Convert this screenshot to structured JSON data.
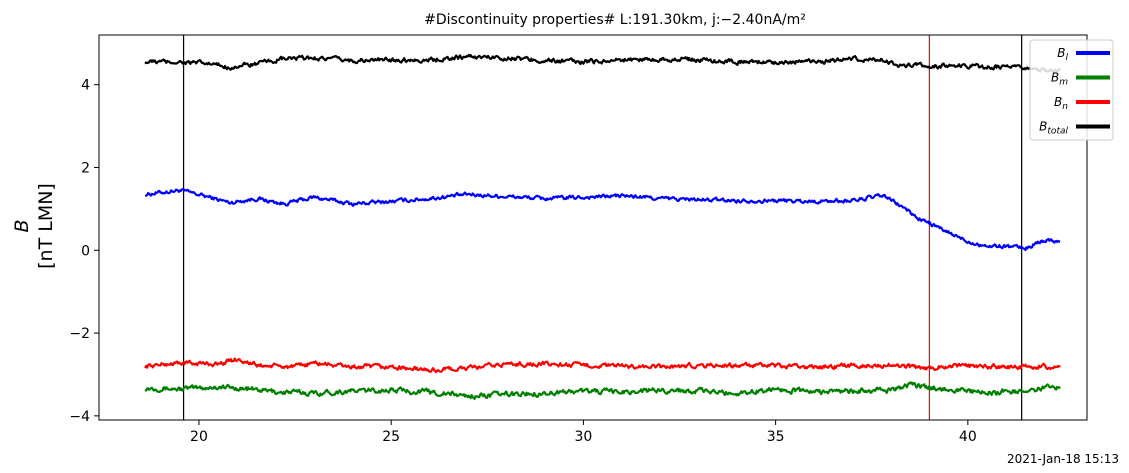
{
  "chart_data": {
    "type": "line",
    "title": "#Discontinuity properties# L:191.30km, j:−2.40nA/m²",
    "ylabel_line1": "B",
    "ylabel_line2": "[nT LMN]",
    "xlabel": "",
    "xlim": [
      17.4,
      43.1
    ],
    "ylim": [
      -4.1,
      5.2
    ],
    "xticks": [
      20,
      25,
      30,
      35,
      40
    ],
    "yticks": [
      4,
      2,
      0,
      -2,
      -4
    ],
    "ytick_labels": [
      "4",
      "2",
      "0",
      "−2",
      "−4"
    ],
    "grid": false,
    "legend_position": "top-right",
    "x_range": [
      18.6,
      42.4
    ],
    "vlines": [
      {
        "x": 19.6,
        "color": "#000000"
      },
      {
        "x": 39.0,
        "color": "#ff0000"
      },
      {
        "x": 41.4,
        "color": "#000000"
      }
    ],
    "series": [
      {
        "name": "B_l",
        "color": "#0000ff",
        "noise": 0.035,
        "points": [
          [
            18.6,
            1.35
          ],
          [
            19.5,
            1.45
          ],
          [
            20.2,
            1.3
          ],
          [
            20.8,
            1.15
          ],
          [
            21.5,
            1.25
          ],
          [
            22.2,
            1.12
          ],
          [
            23.0,
            1.28
          ],
          [
            24.0,
            1.12
          ],
          [
            25.0,
            1.18
          ],
          [
            26.0,
            1.25
          ],
          [
            27.0,
            1.35
          ],
          [
            28.0,
            1.3
          ],
          [
            29.0,
            1.25
          ],
          [
            30.0,
            1.28
          ],
          [
            31.0,
            1.32
          ],
          [
            32.0,
            1.25
          ],
          [
            33.0,
            1.22
          ],
          [
            34.0,
            1.2
          ],
          [
            35.0,
            1.2
          ],
          [
            36.0,
            1.18
          ],
          [
            37.0,
            1.2
          ],
          [
            37.8,
            1.32
          ],
          [
            38.3,
            1.05
          ],
          [
            38.7,
            0.78
          ],
          [
            39.0,
            0.65
          ],
          [
            39.5,
            0.42
          ],
          [
            40.0,
            0.22
          ],
          [
            40.5,
            0.1
          ],
          [
            41.0,
            0.1
          ],
          [
            41.5,
            0.05
          ],
          [
            42.0,
            0.25
          ],
          [
            42.4,
            0.22
          ]
        ]
      },
      {
        "name": "B_m",
        "color": "#008000",
        "noise": 0.045,
        "points": [
          [
            18.6,
            -3.32
          ],
          [
            19.5,
            -3.35
          ],
          [
            20.5,
            -3.3
          ],
          [
            21.3,
            -3.35
          ],
          [
            22.0,
            -3.42
          ],
          [
            23.0,
            -3.45
          ],
          [
            24.0,
            -3.4
          ],
          [
            25.0,
            -3.38
          ],
          [
            26.0,
            -3.42
          ],
          [
            27.0,
            -3.52
          ],
          [
            28.0,
            -3.48
          ],
          [
            29.0,
            -3.45
          ],
          [
            30.0,
            -3.4
          ],
          [
            31.0,
            -3.42
          ],
          [
            32.0,
            -3.38
          ],
          [
            33.0,
            -3.4
          ],
          [
            34.0,
            -3.45
          ],
          [
            35.0,
            -3.35
          ],
          [
            36.0,
            -3.42
          ],
          [
            37.0,
            -3.4
          ],
          [
            38.0,
            -3.38
          ],
          [
            38.5,
            -3.25
          ],
          [
            39.0,
            -3.32
          ],
          [
            39.5,
            -3.35
          ],
          [
            40.0,
            -3.4
          ],
          [
            40.5,
            -3.45
          ],
          [
            41.0,
            -3.4
          ],
          [
            41.5,
            -3.42
          ],
          [
            42.0,
            -3.32
          ],
          [
            42.4,
            -3.3
          ]
        ]
      },
      {
        "name": "B_n",
        "color": "#ff0000",
        "noise": 0.04,
        "points": [
          [
            18.6,
            -2.8
          ],
          [
            19.5,
            -2.72
          ],
          [
            20.5,
            -2.75
          ],
          [
            21.0,
            -2.62
          ],
          [
            21.5,
            -2.78
          ],
          [
            22.5,
            -2.82
          ],
          [
            23.0,
            -2.72
          ],
          [
            24.0,
            -2.82
          ],
          [
            25.0,
            -2.82
          ],
          [
            26.0,
            -2.9
          ],
          [
            27.0,
            -2.85
          ],
          [
            28.0,
            -2.75
          ],
          [
            29.0,
            -2.75
          ],
          [
            30.0,
            -2.78
          ],
          [
            31.0,
            -2.8
          ],
          [
            32.0,
            -2.82
          ],
          [
            33.0,
            -2.78
          ],
          [
            34.0,
            -2.78
          ],
          [
            35.0,
            -2.8
          ],
          [
            36.0,
            -2.82
          ],
          [
            37.0,
            -2.78
          ],
          [
            38.0,
            -2.78
          ],
          [
            39.0,
            -2.85
          ],
          [
            39.5,
            -2.78
          ],
          [
            40.0,
            -2.8
          ],
          [
            41.0,
            -2.82
          ],
          [
            42.0,
            -2.8
          ],
          [
            42.4,
            -2.85
          ]
        ]
      },
      {
        "name": "B_total",
        "color": "#000000",
        "noise": 0.04,
        "points": [
          [
            18.6,
            4.55
          ],
          [
            19.5,
            4.55
          ],
          [
            20.3,
            4.5
          ],
          [
            20.8,
            4.42
          ],
          [
            21.5,
            4.5
          ],
          [
            22.2,
            4.62
          ],
          [
            23.0,
            4.65
          ],
          [
            24.0,
            4.58
          ],
          [
            25.0,
            4.6
          ],
          [
            26.0,
            4.6
          ],
          [
            27.0,
            4.68
          ],
          [
            28.0,
            4.65
          ],
          [
            29.0,
            4.58
          ],
          [
            30.0,
            4.55
          ],
          [
            31.0,
            4.6
          ],
          [
            32.0,
            4.62
          ],
          [
            33.0,
            4.6
          ],
          [
            34.0,
            4.55
          ],
          [
            35.0,
            4.55
          ],
          [
            36.0,
            4.55
          ],
          [
            37.0,
            4.62
          ],
          [
            37.8,
            4.6
          ],
          [
            38.3,
            4.45
          ],
          [
            39.0,
            4.45
          ],
          [
            39.5,
            4.45
          ],
          [
            40.0,
            4.45
          ],
          [
            41.0,
            4.42
          ],
          [
            41.5,
            4.38
          ],
          [
            42.0,
            4.35
          ],
          [
            42.4,
            4.35
          ]
        ]
      }
    ],
    "legend": [
      {
        "base": "B",
        "sub": "l",
        "color": "#0000ff"
      },
      {
        "base": "B",
        "sub": "m",
        "color": "#008000"
      },
      {
        "base": "B",
        "sub": "n",
        "color": "#ff0000"
      },
      {
        "base": "B",
        "sub": "total",
        "color": "#000000"
      }
    ]
  },
  "footer_text": "2021-Jan-18 15:13"
}
